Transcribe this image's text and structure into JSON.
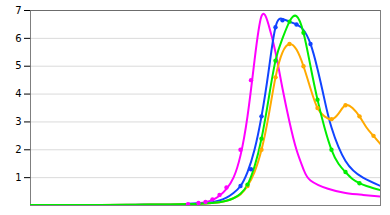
{
  "chart_data": {
    "type": "line",
    "xlim": [
      0,
      1
    ],
    "ylim": [
      0,
      7
    ],
    "yticks": [
      1,
      2,
      3,
      4,
      5,
      6,
      7
    ],
    "grid": true,
    "tick_labels": "y",
    "series": [
      {
        "type": "line",
        "color": "#ff00ff",
        "x": [
          0.0,
          0.05,
          0.1,
          0.2,
          0.3,
          0.38,
          0.42,
          0.45,
          0.48,
          0.5,
          0.52,
          0.54,
          0.56,
          0.58,
          0.6,
          0.62,
          0.64,
          0.66,
          0.68,
          0.7,
          0.72,
          0.74,
          0.76,
          0.78,
          0.8,
          0.85,
          0.9,
          0.95,
          1.0
        ],
        "values": [
          0.02,
          0.02,
          0.02,
          0.02,
          0.02,
          0.02,
          0.03,
          0.05,
          0.08,
          0.12,
          0.2,
          0.35,
          0.6,
          1.0,
          1.8,
          3.2,
          5.2,
          6.8,
          6.5,
          5.5,
          4.2,
          3.0,
          2.0,
          1.3,
          0.9,
          0.6,
          0.45,
          0.38,
          0.32
        ]
      },
      {
        "type": "line",
        "color": "#1144ff",
        "x": [
          0.0,
          0.1,
          0.2,
          0.3,
          0.4,
          0.45,
          0.5,
          0.52,
          0.54,
          0.56,
          0.58,
          0.6,
          0.62,
          0.64,
          0.66,
          0.68,
          0.7,
          0.72,
          0.74,
          0.76,
          0.78,
          0.8,
          0.82,
          0.84,
          0.86,
          0.9,
          0.95,
          1.0
        ],
        "values": [
          0.02,
          0.02,
          0.02,
          0.03,
          0.04,
          0.06,
          0.09,
          0.12,
          0.18,
          0.28,
          0.45,
          0.7,
          1.2,
          2.0,
          3.2,
          4.8,
          6.4,
          6.7,
          6.6,
          6.5,
          6.3,
          5.8,
          4.9,
          3.8,
          2.8,
          1.6,
          1.0,
          0.7
        ]
      },
      {
        "type": "line",
        "color": "#ffaa00",
        "x": [
          0.0,
          0.2,
          0.3,
          0.4,
          0.45,
          0.5,
          0.52,
          0.54,
          0.56,
          0.58,
          0.6,
          0.62,
          0.64,
          0.66,
          0.68,
          0.7,
          0.72,
          0.74,
          0.76,
          0.78,
          0.8,
          0.82,
          0.84,
          0.86,
          0.88,
          0.9,
          0.92,
          0.94,
          0.96,
          0.98,
          1.0
        ],
        "values": [
          0.02,
          0.02,
          0.03,
          0.04,
          0.05,
          0.07,
          0.09,
          0.12,
          0.17,
          0.26,
          0.4,
          0.7,
          1.2,
          2.0,
          3.2,
          4.6,
          5.5,
          5.8,
          5.6,
          5.0,
          4.2,
          3.5,
          3.2,
          3.1,
          3.3,
          3.6,
          3.5,
          3.2,
          2.8,
          2.5,
          2.2
        ]
      },
      {
        "type": "line",
        "color": "#00ee00",
        "x": [
          0.0,
          0.2,
          0.3,
          0.4,
          0.45,
          0.5,
          0.52,
          0.54,
          0.56,
          0.58,
          0.6,
          0.62,
          0.64,
          0.66,
          0.68,
          0.7,
          0.72,
          0.74,
          0.76,
          0.78,
          0.8,
          0.82,
          0.84,
          0.86,
          0.88,
          0.9,
          0.92,
          0.94,
          0.96,
          0.98,
          1.0
        ],
        "values": [
          0.02,
          0.02,
          0.03,
          0.04,
          0.05,
          0.07,
          0.09,
          0.12,
          0.17,
          0.26,
          0.42,
          0.75,
          1.4,
          2.4,
          3.8,
          5.2,
          6.0,
          6.6,
          6.8,
          6.2,
          5.0,
          3.8,
          2.8,
          2.0,
          1.5,
          1.2,
          0.95,
          0.8,
          0.7,
          0.62,
          0.55
        ]
      },
      {
        "type": "scatter",
        "marker": "circle",
        "color": "#ff00ff",
        "x": [
          0.45,
          0.48,
          0.5,
          0.52,
          0.54,
          0.56,
          0.6,
          0.63
        ],
        "values": [
          0.05,
          0.09,
          0.13,
          0.22,
          0.38,
          0.65,
          2.0,
          4.5
        ]
      },
      {
        "type": "scatter",
        "marker": "circle",
        "color": "#1144ff",
        "x": [
          0.6,
          0.63,
          0.66,
          0.7,
          0.72,
          0.76,
          0.8
        ],
        "values": [
          0.7,
          1.3,
          3.2,
          6.4,
          6.65,
          6.5,
          5.8
        ]
      },
      {
        "type": "scatter",
        "marker": "circle",
        "color": "#ffaa00",
        "x": [
          0.62,
          0.66,
          0.7,
          0.74,
          0.78,
          0.82,
          0.86,
          0.9,
          0.94,
          0.98
        ],
        "values": [
          0.7,
          2.0,
          4.6,
          5.8,
          5.0,
          3.5,
          3.1,
          3.6,
          3.2,
          2.5
        ]
      },
      {
        "type": "scatter",
        "marker": "circle",
        "color": "#00ee00",
        "x": [
          0.62,
          0.66,
          0.7,
          0.74,
          0.78,
          0.82,
          0.86,
          0.9,
          0.94
        ],
        "values": [
          0.75,
          2.4,
          5.2,
          6.6,
          6.2,
          3.8,
          2.0,
          1.2,
          0.8
        ]
      }
    ]
  }
}
